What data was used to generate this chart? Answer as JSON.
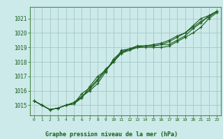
{
  "title": "Graphe pression niveau de la mer (hPa)",
  "bg_color": "#cceaea",
  "grid_color": "#aacccc",
  "line_color": "#1a5c1a",
  "xlim": [
    -0.5,
    23.5
  ],
  "ylim": [
    1014.3,
    1021.8
  ],
  "yticks": [
    1015,
    1016,
    1017,
    1018,
    1019,
    1020,
    1021
  ],
  "xticks": [
    0,
    1,
    2,
    3,
    4,
    5,
    6,
    7,
    8,
    9,
    10,
    11,
    12,
    13,
    14,
    15,
    16,
    17,
    18,
    19,
    20,
    21,
    22,
    23
  ],
  "series": [
    [
      1015.3,
      1015.0,
      1014.7,
      1014.8,
      1015.0,
      1015.1,
      1015.5,
      1016.3,
      1017.0,
      1017.4,
      1018.0,
      1018.8,
      1018.9,
      1019.0,
      1019.0,
      1019.0,
      1019.0,
      1019.1,
      1019.4,
      1019.7,
      1020.0,
      1020.4,
      1021.0,
      1021.4
    ],
    [
      1015.3,
      1015.0,
      1014.7,
      1014.8,
      1015.0,
      1015.1,
      1015.8,
      1016.2,
      1016.8,
      1017.5,
      1018.0,
      1018.6,
      1018.8,
      1019.0,
      1019.1,
      1019.1,
      1019.2,
      1019.2,
      1019.5,
      1019.8,
      1020.3,
      1020.7,
      1021.2,
      1021.5
    ],
    [
      1015.3,
      1015.0,
      1014.7,
      1014.8,
      1015.0,
      1015.2,
      1015.6,
      1016.0,
      1016.5,
      1017.3,
      1018.2,
      1018.7,
      1018.9,
      1019.1,
      1019.1,
      1019.2,
      1019.3,
      1019.5,
      1019.8,
      1020.0,
      1020.5,
      1021.0,
      1021.2,
      1021.5
    ],
    [
      1015.3,
      1015.0,
      1014.7,
      1014.8,
      1015.0,
      1015.1,
      1015.6,
      1016.1,
      1016.7,
      1017.4,
      1018.1,
      1018.6,
      1018.9,
      1019.1,
      1019.1,
      1019.1,
      1019.2,
      1019.4,
      1019.7,
      1020.0,
      1020.4,
      1020.8,
      1021.1,
      1021.5
    ]
  ]
}
